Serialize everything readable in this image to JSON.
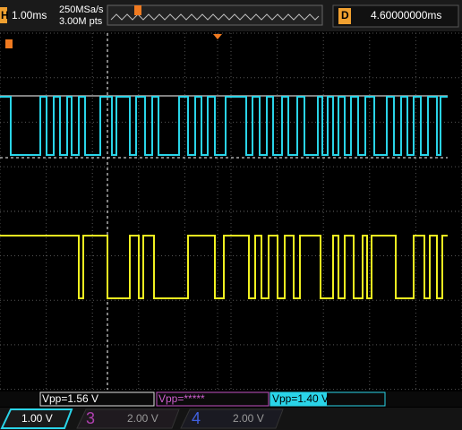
{
  "header": {
    "timebase_label": "H",
    "timebase": "1.00ms",
    "sample_rate": "250MSa/s",
    "memory_depth": "3.00M pts",
    "delay_label": "D",
    "delay": "4.60000000ms"
  },
  "measurements": [
    "Vpp=1.56 V",
    "Vpp=*****",
    "Vpp=1.40 V"
  ],
  "channels": [
    {
      "scale": "1.00 V"
    },
    {
      "number": "3",
      "scale": "2.00 V"
    },
    {
      "number": "4",
      "scale": "2.00 V"
    }
  ]
}
